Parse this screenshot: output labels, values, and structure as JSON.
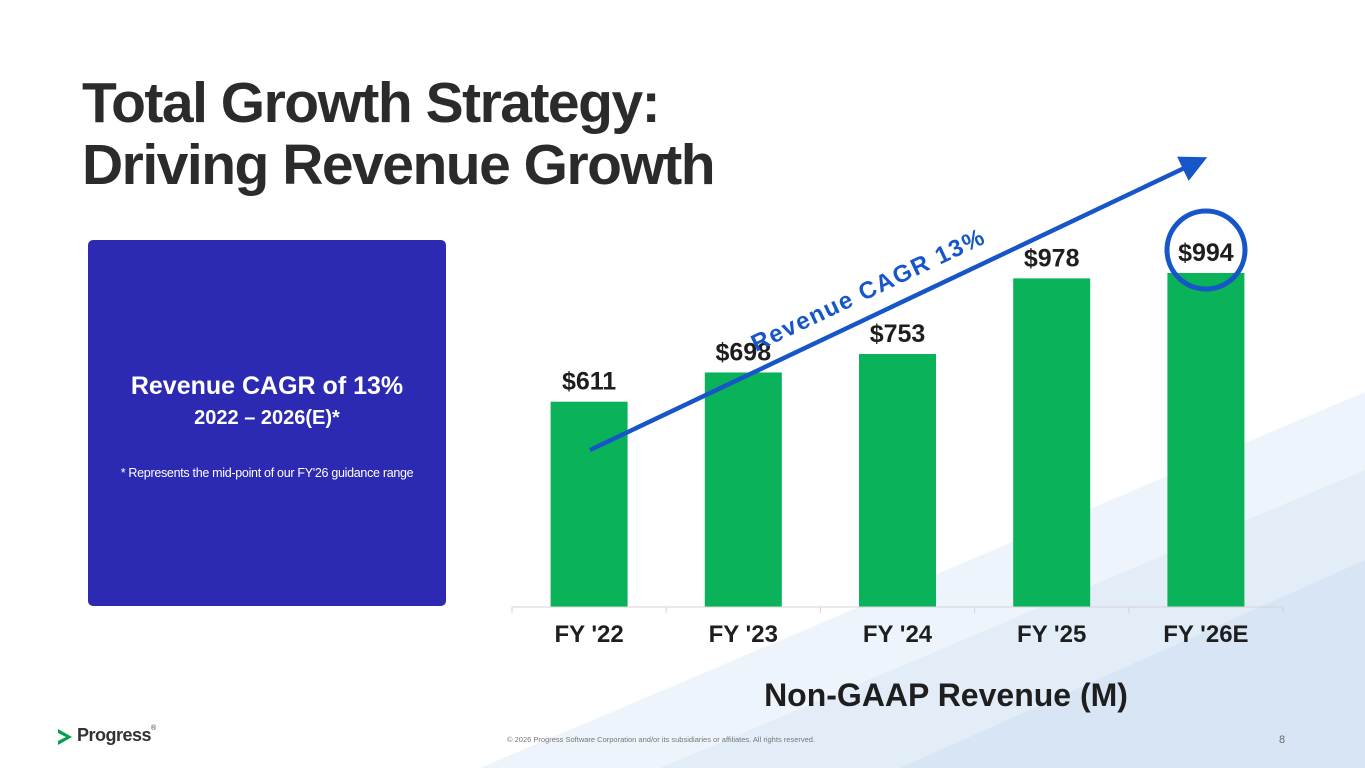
{
  "slide": {
    "title_line1": "Total Growth Strategy:",
    "title_line2": "Driving Revenue Growth",
    "page_number": "8",
    "copyright": "© 2026 Progress Software Corporation and/or its subsidiaries or affiliates. All rights reserved.",
    "logo_text": "Progress",
    "logo_mark": "®"
  },
  "panel": {
    "headline": "Revenue CAGR of 13%",
    "range": "2022 – 2026(E)*",
    "footnote": "* Represents the mid-point of our FY'26 guidance range"
  },
  "colors": {
    "panel": "#2c2ab2",
    "bar": "#0ab35a",
    "arrow": "#1656c8",
    "highlight_ring": "#1656c8",
    "title": "#2b2b2b"
  },
  "chart_data": {
    "type": "bar",
    "title": "Non-GAAP Revenue (M)",
    "categories": [
      "FY '22",
      "FY '23",
      "FY '24",
      "FY '25",
      "FY '26E"
    ],
    "values": [
      611,
      698,
      753,
      978,
      994
    ],
    "value_labels": [
      "$611",
      "$698",
      "$753",
      "$978",
      "$994"
    ],
    "ylim": [
      0,
      1000
    ],
    "trend_label": "Revenue CAGR 13%",
    "highlighted_category": "FY '26E",
    "grid": false,
    "xlabel": "",
    "ylabel": ""
  }
}
